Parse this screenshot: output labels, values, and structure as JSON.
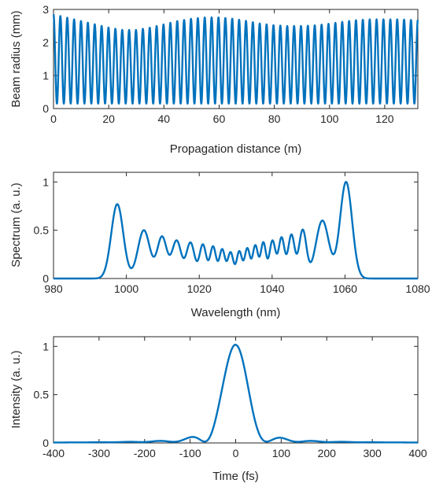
{
  "chart_data": [
    {
      "type": "line",
      "xlabel": "Propagation distance (m)",
      "ylabel": "Beam radius (mm)",
      "xlim": [
        0,
        132
      ],
      "ylim": [
        0,
        3
      ],
      "xticks": [
        "0",
        "20",
        "40",
        "60",
        "80",
        "100",
        "120"
      ],
      "yticks": [
        "0",
        "1",
        "2",
        "3"
      ],
      "grid": false,
      "series": [
        {
          "color": "#0072BD",
          "oscillation_count": 53,
          "minimum": 0.15,
          "envelope_max": {
            "x": [
              0,
              5,
              10,
              15,
              20,
              25,
              30,
              35,
              40,
              45,
              50,
              55,
              60,
              65,
              70,
              75,
              80,
              85,
              90,
              95,
              100,
              105,
              110,
              115,
              120,
              125,
              130,
              132
            ],
            "y": [
              2.85,
              2.75,
              2.65,
              2.55,
              2.45,
              2.38,
              2.38,
              2.45,
              2.55,
              2.65,
              2.72,
              2.76,
              2.76,
              2.72,
              2.65,
              2.57,
              2.52,
              2.5,
              2.5,
              2.52,
              2.57,
              2.63,
              2.68,
              2.7,
              2.7,
              2.7,
              2.68,
              2.68
            ]
          }
        }
      ]
    },
    {
      "type": "line",
      "xlabel": "Wavelength (nm)",
      "ylabel": "Spectrum (a. u.)",
      "xlim": [
        980,
        1080
      ],
      "ylim": [
        0,
        1.1
      ],
      "xticks": [
        "980",
        "1000",
        "1020",
        "1040",
        "1060",
        "1080"
      ],
      "yticks": [
        "0",
        "0.5",
        "1"
      ],
      "grid": false,
      "series": [
        {
          "color": "#0072BD",
          "peaks": {
            "x": [
              997.5,
              1004.8,
              1009.8,
              1013.8,
              1017.6,
              1021.0,
              1023.8,
              1026.3,
              1028.6,
              1031.0,
              1033.2,
              1035.4,
              1037.6,
              1040.1,
              1042.6,
              1045.3,
              1048.4,
              1053.8,
              1060.3
            ],
            "y": [
              0.77,
              0.5,
              0.43,
              0.39,
              0.37,
              0.35,
              0.33,
              0.3,
              0.27,
              0.28,
              0.31,
              0.34,
              0.37,
              0.39,
              0.42,
              0.45,
              0.5,
              0.6,
              1.0
            ]
          }
        }
      ]
    },
    {
      "type": "line",
      "xlabel": "Time (fs)",
      "ylabel": "Intensity (a. u.)",
      "xlim": [
        -400,
        400
      ],
      "ylim": [
        0,
        1.1
      ],
      "xticks": [
        "-400",
        "-300",
        "-200",
        "-100",
        "0",
        "100",
        "200",
        "300",
        "400"
      ],
      "yticks": [
        "0",
        "0.5",
        "1"
      ],
      "grid": false,
      "series": [
        {
          "color": "#0072BD",
          "peaks": {
            "x": [
              0,
              -68,
              68,
              -125,
              125
            ],
            "y": [
              1.0,
              0.14,
              0.1,
              0.045,
              0.025
            ]
          },
          "baseline": 0.015
        }
      ]
    }
  ]
}
